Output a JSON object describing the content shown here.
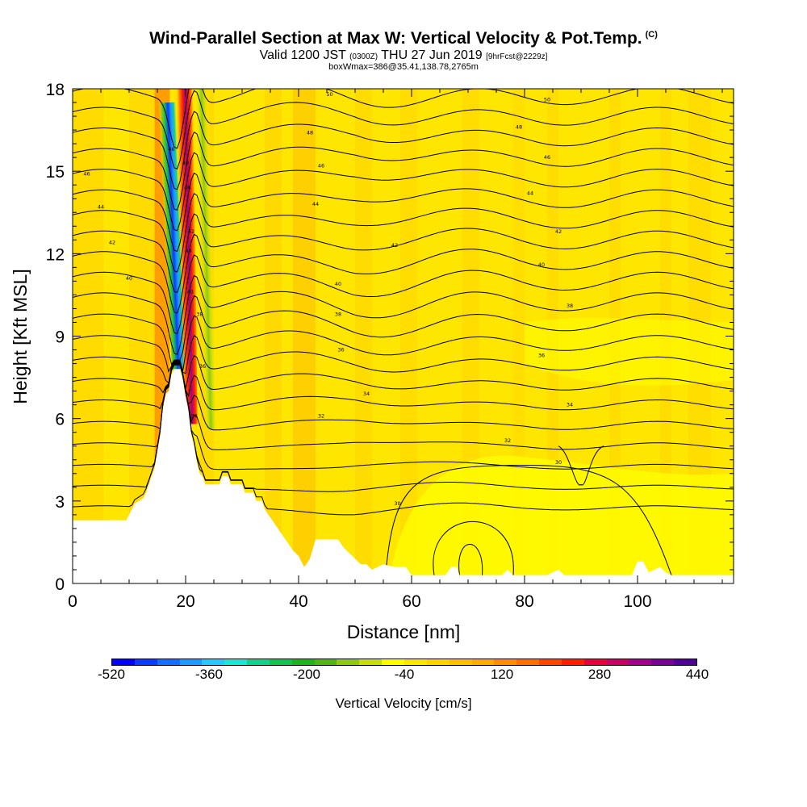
{
  "header": {
    "title": "Wind-Parallel Section at Max W: Vertical Velocity & Pot.Temp.",
    "copyright": "(C)",
    "valid_prefix": "Valid 1200 JST",
    "utc": "(0300Z)",
    "valid_date": "THU 27 Jun 2019",
    "forecast": "[9hrFcst@2229z]",
    "box_info": "boxWmax=386@35.41,138.78,2765m"
  },
  "chart_data": {
    "type": "heatmap",
    "title": "Wind-Parallel Section at Max W: Vertical Velocity & Pot.Temp.",
    "xlabel": "Distance [nm]",
    "ylabel": "Height [Kft MSL]",
    "xlim": [
      0,
      117
    ],
    "ylim": [
      0,
      18
    ],
    "x_ticks": [
      0,
      20,
      40,
      60,
      80,
      100
    ],
    "y_ticks": [
      0,
      3,
      6,
      9,
      12,
      15,
      18
    ],
    "colorbar": {
      "label": "Vertical Velocity [cm/s]",
      "tick_values": [
        -520,
        -360,
        -200,
        -40,
        120,
        280,
        440
      ],
      "tick_labels": [
        "-520",
        "-360",
        "-200",
        "-40",
        "120",
        "280",
        "440"
      ],
      "colors": [
        "#0000ff",
        "#0a3cff",
        "#146eff",
        "#1e9bff",
        "#28c8ff",
        "#1ee6d2",
        "#14d28c",
        "#14c350",
        "#1eb41e",
        "#50b414",
        "#8cc814",
        "#c8dc14",
        "#ffff00",
        "#ffe600",
        "#ffd200",
        "#ffbe00",
        "#ffaa00",
        "#ff8c00",
        "#ff6e00",
        "#ff4600",
        "#ff1e00",
        "#e6003c",
        "#c80064",
        "#a0008c",
        "#780096",
        "#500096"
      ]
    },
    "theta_labels": [
      {
        "x": 2.5,
        "y": 14.9,
        "text": "46"
      },
      {
        "x": 5,
        "y": 13.7,
        "text": "44"
      },
      {
        "x": 7,
        "y": 12.4,
        "text": "42"
      },
      {
        "x": 10,
        "y": 11.1,
        "text": "40"
      },
      {
        "x": 45.5,
        "y": 17.8,
        "text": "50"
      },
      {
        "x": 84,
        "y": 17.6,
        "text": "50"
      },
      {
        "x": 42,
        "y": 16.4,
        "text": "48"
      },
      {
        "x": 79,
        "y": 16.6,
        "text": "48"
      },
      {
        "x": 44,
        "y": 15.2,
        "text": "46"
      },
      {
        "x": 84,
        "y": 15.5,
        "text": "46"
      },
      {
        "x": 43,
        "y": 13.8,
        "text": "44"
      },
      {
        "x": 81,
        "y": 14.2,
        "text": "44"
      },
      {
        "x": 57,
        "y": 12.3,
        "text": "42"
      },
      {
        "x": 86,
        "y": 12.8,
        "text": "42"
      },
      {
        "x": 47,
        "y": 10.9,
        "text": "40"
      },
      {
        "x": 83,
        "y": 11.6,
        "text": "40"
      },
      {
        "x": 47,
        "y": 9.8,
        "text": "38"
      },
      {
        "x": 88,
        "y": 10.1,
        "text": "38"
      },
      {
        "x": 47.5,
        "y": 8.5,
        "text": "36"
      },
      {
        "x": 83,
        "y": 8.3,
        "text": "36"
      },
      {
        "x": 52,
        "y": 6.9,
        "text": "34"
      },
      {
        "x": 88,
        "y": 6.5,
        "text": "34"
      },
      {
        "x": 44,
        "y": 6.1,
        "text": "32"
      },
      {
        "x": 77,
        "y": 5.2,
        "text": "32"
      },
      {
        "x": 86,
        "y": 4.4,
        "text": "30"
      },
      {
        "x": 57.5,
        "y": 2.9,
        "text": "30"
      },
      {
        "x": 17.5,
        "y": 15.8,
        "text": "46"
      },
      {
        "x": 20,
        "y": 15.3,
        "text": "48"
      },
      {
        "x": 20.3,
        "y": 14.4,
        "text": "46"
      },
      {
        "x": 21,
        "y": 12.8,
        "text": "42"
      },
      {
        "x": 20.5,
        "y": 12.1,
        "text": "44"
      },
      {
        "x": 20.8,
        "y": 10.6,
        "text": "40"
      },
      {
        "x": 22.5,
        "y": 9.8,
        "text": "38"
      },
      {
        "x": 23,
        "y": 7.9,
        "text": "36"
      },
      {
        "x": 21.5,
        "y": 6.1,
        "text": "34"
      }
    ],
    "terrain_profile_kft": [
      [
        0,
        2.3
      ],
      [
        9.5,
        2.3
      ],
      [
        10,
        2.5
      ],
      [
        10.5,
        2.7
      ],
      [
        11,
        2.9
      ],
      [
        12.5,
        3.1
      ],
      [
        13,
        3.3
      ],
      [
        13.5,
        3.6
      ],
      [
        14,
        3.9
      ],
      [
        14.5,
        4.2
      ],
      [
        15,
        4.8
      ],
      [
        15.5,
        5.4
      ],
      [
        16,
        6.4
      ],
      [
        16.5,
        6.9
      ],
      [
        17,
        7.0
      ],
      [
        17.5,
        7.6
      ],
      [
        18,
        7.8
      ],
      [
        19,
        7.8
      ],
      [
        19.5,
        7.4
      ],
      [
        20,
        6.8
      ],
      [
        20.5,
        6.3
      ],
      [
        21,
        5.4
      ],
      [
        21.5,
        5.0
      ],
      [
        22,
        4.4
      ],
      [
        22.5,
        4.0
      ],
      [
        23,
        3.9
      ],
      [
        23.5,
        3.6
      ],
      [
        26,
        3.6
      ],
      [
        26.5,
        3.9
      ],
      [
        27.5,
        3.9
      ],
      [
        28,
        3.6
      ],
      [
        30,
        3.6
      ],
      [
        30.5,
        3.3
      ],
      [
        32,
        3.3
      ],
      [
        32.5,
        3.0
      ],
      [
        33.5,
        3.0
      ],
      [
        34,
        2.7
      ],
      [
        35,
        2.4
      ],
      [
        36,
        2.1
      ],
      [
        37,
        1.8
      ],
      [
        38,
        1.5
      ],
      [
        39,
        1.2
      ],
      [
        40,
        1.0
      ],
      [
        41,
        0.6
      ],
      [
        42,
        0.9
      ],
      [
        43,
        1.6
      ],
      [
        47,
        1.6
      ],
      [
        48,
        1.3
      ],
      [
        49,
        1.1
      ],
      [
        50,
        0.9
      ],
      [
        51,
        0.7
      ],
      [
        52,
        0.7
      ],
      [
        53,
        0.5
      ],
      [
        55,
        0.7
      ],
      [
        57,
        0.6
      ],
      [
        59,
        0.6
      ],
      [
        60,
        0.3
      ],
      [
        66,
        0.3
      ],
      [
        67,
        0.6
      ],
      [
        68,
        0.6
      ],
      [
        68.5,
        0.3
      ],
      [
        70,
        0.3
      ],
      [
        71,
        0.3
      ],
      [
        76,
        0.3
      ],
      [
        77,
        0.5
      ],
      [
        78,
        0.3
      ],
      [
        84,
        0.3
      ],
      [
        86,
        0.5
      ],
      [
        87,
        0.3
      ],
      [
        99,
        0.3
      ],
      [
        100,
        0.8
      ],
      [
        101,
        0.8
      ],
      [
        102,
        0.4
      ],
      [
        104,
        0.6
      ],
      [
        105,
        0.4
      ],
      [
        106,
        0.3
      ],
      [
        117,
        0.3
      ]
    ],
    "vertical_velocity_features": [
      {
        "kind": "updraft",
        "x_bottom": 21.0,
        "y_bottom": 5.8,
        "x_top": 19.8,
        "y_top": 18.0,
        "peak": 440
      },
      {
        "kind": "downdraft",
        "x_bottom": 18.7,
        "y_bottom": 7.8,
        "x_top": 16.8,
        "y_top": 17.5,
        "peak": -520
      }
    ]
  }
}
